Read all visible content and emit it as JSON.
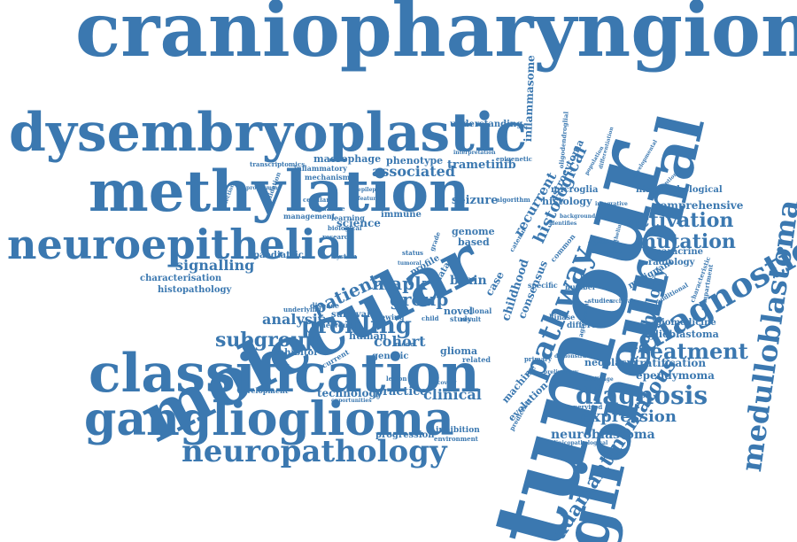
{
  "accent_color": "#3b78b0",
  "background_color": "#ffffff",
  "words": [
    "craniopharyngioma",
    "dysembryoplastic",
    "methylation",
    "neuroepithelial",
    "molecular",
    "classification",
    "ganglioglioma",
    "neuropathology",
    "tumour",
    "glioneuronal",
    "medulloblastoma",
    "diagnostic",
    "adamantinomatous",
    "pathway",
    "treatment",
    "diagnosis",
    "subgroup",
    "profiling",
    "mutation",
    "activation",
    "comprehensive",
    "histopathological",
    "pathology",
    "expression",
    "neuroblastoma",
    "histological",
    "recurrent",
    "seizure",
    "signalling",
    "analysis",
    "group",
    "patient",
    "mapk",
    "cohort",
    "associated",
    "phenotype",
    "macrophage",
    "trametinib",
    "understanding",
    "inflammasome",
    "astrocytoma",
    "microglia",
    "histology",
    "consensus",
    "childhood",
    "brain",
    "genome",
    "based",
    "novel",
    "clinical",
    "glioma",
    "technology",
    "practice",
    "stratification",
    "ependymoma",
    "glioblastoma",
    "biomedicine",
    "neoplasm",
    "evolution",
    "machine",
    "paracrine",
    "radiology",
    "malignant",
    "science",
    "immune",
    "paediatric",
    "characterisation",
    "histopathology",
    "inhibitor",
    "survival",
    "human",
    "genetic",
    "progression",
    "inhibition",
    "development",
    "unsupervised",
    "clinicopathological",
    "transcriptomics",
    "inflammatory",
    "mechanism",
    "management",
    "learning",
    "validation",
    "profile",
    "case",
    "data",
    "related",
    "current",
    "disease",
    "nervous",
    "study",
    "result",
    "clonal",
    "different",
    "kinase",
    "number",
    "studies",
    "specific",
    "algorithm",
    "interpretation",
    "oligodendroglial",
    "catenin",
    "common",
    "underlying",
    "biological",
    "research",
    "system",
    "status",
    "tumoral",
    "characteristic",
    "additional",
    "compartment",
    "developmental",
    "distinguish",
    "significant",
    "primary",
    "preliminary",
    "environment",
    "discovery",
    "demonstrate",
    "challenge",
    "agreement",
    "predictive",
    "ewing",
    "child",
    "model",
    "lesion",
    "feature",
    "epilepsy",
    "identifies",
    "grade",
    "population",
    "differentiation",
    "background",
    "integrative",
    "epithelium",
    "conventional",
    "opportunities",
    "signature",
    "cellular",
    "programme",
    "resection",
    "epigenetic",
    "archival"
  ]
}
